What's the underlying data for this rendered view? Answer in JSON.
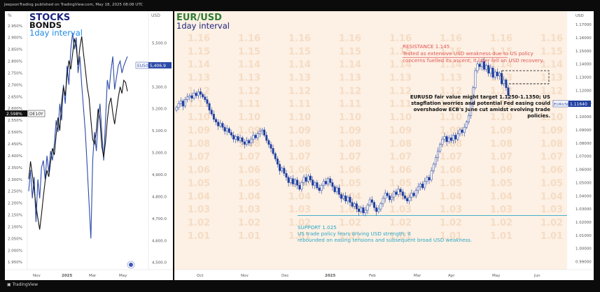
{
  "header": {
    "publisher": "JeepsonTrading published on TradingView.com, May 18, 2025 08:08 UTC"
  },
  "footer": {
    "brand": "TradingView"
  },
  "colors": {
    "panel_bg": "#ffffff",
    "eur_bg": "#fdf0e4",
    "candle_up": "#ffffff",
    "candle_down": "#1f3fa0",
    "bond_line": "#2c4aa8",
    "stock_line": "#111111",
    "resistance": "#e05555",
    "support": "#2aa8c6",
    "grid_text": "#f5dcc4",
    "title_green": "#2e7d32",
    "title_navy": "#1a237e"
  },
  "chart_data": [
    {
      "type": "line",
      "title": "STOCKS",
      "subtitle": "BONDS",
      "interval": "1day interval",
      "x_ticks": [
        "Nov",
        "2025",
        "Mar",
        "May"
      ],
      "left_axis": {
        "unit": "%",
        "ticks": [
          "2.950%",
          "2.900%",
          "2.850%",
          "2.800%",
          "2.750%",
          "2.700%",
          "2.650%",
          "2.600%",
          "2.550%",
          "2.500%",
          "2.450%",
          "2.400%",
          "2.350%",
          "2.300%",
          "2.250%",
          "2.200%",
          "2.150%",
          "2.100%",
          "2.050%",
          "2.000%",
          "1.950%"
        ],
        "range": [
          1.93,
          2.97
        ]
      },
      "right_axis": {
        "unit": "EUR",
        "ticks": [
          "5,500.0",
          "5,400.0",
          "5,300.0",
          "5,200.0",
          "5,100.0",
          "5,000.0",
          "4,900.0",
          "4,800.0",
          "4,700.0",
          "4,600.0",
          "4,500.0"
        ],
        "range": [
          4480,
          5600
        ]
      },
      "badges": {
        "yield": "2.598%",
        "yield_symbol": "DE10Y",
        "index_symbol": "EU50",
        "index_value": "5,406.9"
      },
      "series": [
        {
          "name": "DE10Y",
          "axis": "left",
          "x": [
            0,
            1,
            2,
            3,
            4,
            5,
            6,
            7,
            8,
            9,
            10,
            11,
            12,
            13,
            14,
            15,
            16,
            17,
            18,
            19,
            20,
            21,
            22,
            23,
            24,
            25,
            26,
            27,
            28,
            29,
            30,
            31,
            32,
            33,
            34,
            35,
            36,
            37,
            38,
            39,
            40,
            41,
            42,
            43,
            44,
            45,
            46,
            47,
            48,
            49,
            50,
            51,
            52,
            53,
            54
          ],
          "values": [
            2.25,
            2.34,
            2.22,
            2.31,
            2.12,
            2.3,
            2.22,
            2.35,
            2.38,
            2.3,
            2.4,
            2.33,
            2.42,
            2.38,
            2.45,
            2.55,
            2.5,
            2.62,
            2.55,
            2.7,
            2.62,
            2.78,
            2.7,
            2.85,
            2.92,
            2.85,
            2.9,
            2.75,
            2.82,
            2.7,
            2.6,
            2.5,
            2.35,
            2.2,
            2.05,
            2.38,
            2.5,
            2.42,
            2.55,
            2.62,
            2.5,
            2.38,
            2.55,
            2.72,
            2.68,
            2.76,
            2.82,
            2.68,
            2.73,
            2.78,
            2.8,
            2.75,
            2.78,
            2.8,
            2.82
          ]
        },
        {
          "name": "EU50",
          "axis": "right",
          "x": [
            0,
            1,
            2,
            3,
            4,
            5,
            6,
            7,
            8,
            9,
            10,
            11,
            12,
            13,
            14,
            15,
            16,
            17,
            18,
            19,
            20,
            21,
            22,
            23,
            24,
            25,
            26,
            27,
            28,
            29,
            30,
            31,
            32,
            33,
            34,
            35,
            36,
            37,
            38,
            39,
            40,
            41,
            42,
            43,
            44,
            45,
            46,
            47,
            48,
            49,
            50,
            51,
            52,
            53,
            54
          ],
          "values": [
            4880,
            4960,
            4900,
            4830,
            4760,
            4700,
            4650,
            4720,
            4800,
            4870,
            4920,
            4890,
            4960,
            5020,
            4990,
            5080,
            5160,
            5100,
            5230,
            5300,
            5260,
            5350,
            5420,
            5380,
            5450,
            5520,
            5480,
            5400,
            5480,
            5530,
            5450,
            5380,
            5300,
            5250,
            5150,
            5060,
            5040,
            5100,
            5200,
            5150,
            5030,
            4980,
            5050,
            5150,
            5220,
            5250,
            5180,
            5130,
            5190,
            5250,
            5300,
            5270,
            5330,
            5320,
            5280
          ]
        }
      ]
    },
    {
      "type": "candlestick",
      "title": "EUR/USD",
      "interval": "1day interval",
      "axis_unit": "USD",
      "y_ticks": [
        1.17,
        1.16,
        1.15,
        1.14,
        1.13,
        1.12,
        1.11,
        1.1,
        1.09,
        1.08,
        1.07,
        1.06,
        1.05,
        1.04,
        1.03,
        1.02,
        1.01,
        1.0,
        0.99
      ],
      "y_tick_labels": [
        "1.17000",
        "1.16000",
        "1.15000",
        "1.14000",
        "1.13000",
        "1.12000",
        "1.11000",
        "1.10000",
        "1.09000",
        "1.08000",
        "1.07000",
        "1.06000",
        "1.05000",
        "1.04000",
        "1.03000",
        "1.02000",
        "1.01000",
        "1.00000",
        "0.99000"
      ],
      "ylim": [
        0.985,
        1.178
      ],
      "x_ticks": [
        "Oct",
        "Nov",
        "Dec",
        "2025",
        "Feb",
        "Mar",
        "Apr",
        "May",
        "Jun"
      ],
      "watermark_labels": [
        "1.16",
        "1.15",
        "1.14",
        "1.13",
        "1.12",
        "1.11",
        "1.10",
        "1.09",
        "1.08",
        "1.07",
        "1.06",
        "1.05",
        "1.04",
        "1.03",
        "1.02",
        "1.01"
      ],
      "price_badge": {
        "symbol": "EURUSD",
        "value": "1.11640"
      },
      "levels": {
        "resistance": 1.145,
        "support": 1.025,
        "fair_value_low": 1.125,
        "fair_value_high": 1.135
      },
      "closes": [
        1.107,
        1.11,
        1.112,
        1.108,
        1.113,
        1.115,
        1.116,
        1.114,
        1.118,
        1.116,
        1.119,
        1.117,
        1.115,
        1.113,
        1.11,
        1.105,
        1.102,
        1.098,
        1.096,
        1.093,
        1.095,
        1.092,
        1.089,
        1.091,
        1.088,
        1.086,
        1.083,
        1.085,
        1.082,
        1.084,
        1.081,
        1.079,
        1.082,
        1.08,
        1.083,
        1.086,
        1.084,
        1.087,
        1.089,
        1.09,
        1.086,
        1.082,
        1.079,
        1.076,
        1.072,
        1.068,
        1.064,
        1.059,
        1.061,
        1.057,
        1.054,
        1.05,
        1.053,
        1.049,
        1.052,
        1.048,
        1.045,
        1.05,
        1.054,
        1.051,
        1.055,
        1.052,
        1.048,
        1.05,
        1.046,
        1.044,
        1.048,
        1.051,
        1.049,
        1.053,
        1.05,
        1.047,
        1.043,
        1.046,
        1.041,
        1.038,
        1.04,
        1.036,
        1.039,
        1.035,
        1.032,
        1.034,
        1.03,
        1.028,
        1.031,
        1.027,
        1.029,
        1.033,
        1.037,
        1.035,
        1.031,
        1.028,
        1.03,
        1.034,
        1.038,
        1.042,
        1.04,
        1.037,
        1.039,
        1.043,
        1.041,
        1.045,
        1.043,
        1.04,
        1.038,
        1.036,
        1.039,
        1.042,
        1.04,
        1.044,
        1.047,
        1.049,
        1.046,
        1.051,
        1.054,
        1.052,
        1.059,
        1.064,
        1.069,
        1.074,
        1.079,
        1.083,
        1.085,
        1.081,
        1.084,
        1.082,
        1.086,
        1.083,
        1.087,
        1.09,
        1.088,
        1.092,
        1.096,
        1.101,
        1.11,
        1.122,
        1.135,
        1.14,
        1.138,
        1.142,
        1.136,
        1.139,
        1.133,
        1.137,
        1.13,
        1.134,
        1.131,
        1.133,
        1.125,
        1.128,
        1.122,
        1.116
      ]
    }
  ],
  "annotations": {
    "resistance_title": "RESISTANCE 1.145",
    "resistance_text_1": "Tested as extensive USD weakness due to US policy",
    "resistance_text_2": "concerns fuelled its ascent; it later fell on USD recovery.",
    "fair_text_1": "EURUSD fair value might target 1.1250-1.1350; US",
    "fair_text_2": "stagflation worries and potential Fed easing could",
    "fair_text_3": "overshadow ECB's June cut amidst evolving trade",
    "fair_text_4": "policies.",
    "support_title": "SUPPORT 1.025",
    "support_text_1": "US trade policy fears driving USD strength; it",
    "support_text_2": "rebounded on easing tensions and subsequent broad USD weakness."
  }
}
